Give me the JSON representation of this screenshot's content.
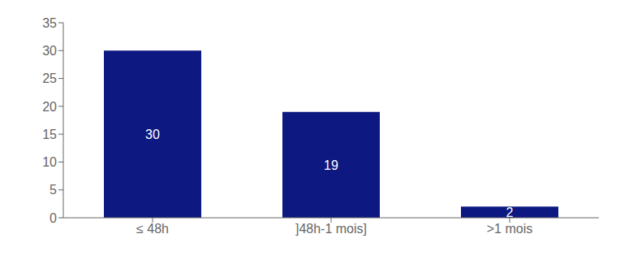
{
  "chart_data": {
    "type": "bar",
    "categories": [
      "≤ 48h",
      "]48h-1 mois]",
      ">1 mois"
    ],
    "values": [
      30,
      19,
      2
    ],
    "color": "#0D1880",
    "ylim": [
      0,
      35
    ],
    "yticks": [
      0,
      5,
      10,
      15,
      20,
      25,
      30,
      35
    ],
    "data_labels": true,
    "grid": false
  }
}
